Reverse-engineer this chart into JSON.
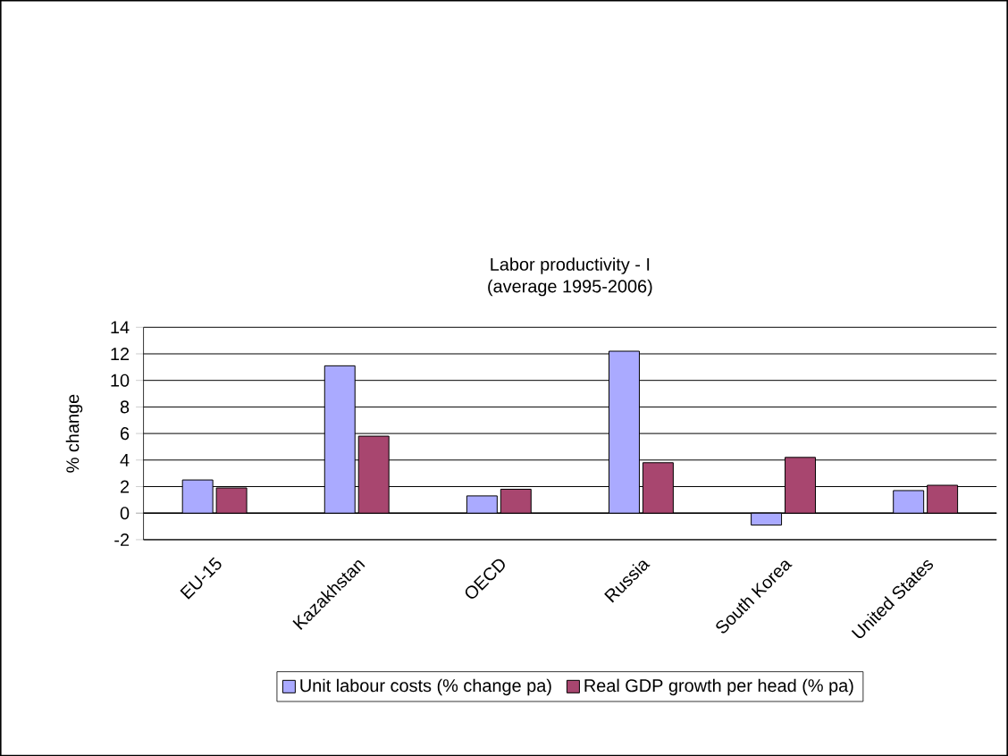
{
  "chart_data": {
    "type": "bar",
    "title": "Labor productivity - I",
    "subtitle": "(average 1995-2006)",
    "ylabel": "% change",
    "categories": [
      "EU-15",
      "Kazakhstan",
      "OECD",
      "Russia",
      "South Korea",
      "United States"
    ],
    "series": [
      {
        "name": "Unit labour costs (% change pa)",
        "color": "#aaaaff",
        "values": [
          2.5,
          11.1,
          1.3,
          12.2,
          -0.9,
          1.7
        ]
      },
      {
        "name": "Real GDP growth per head (% pa)",
        "color": "#a8466f",
        "values": [
          1.9,
          5.8,
          1.8,
          3.8,
          4.2,
          2.1
        ]
      }
    ],
    "ylim": [
      -2,
      14
    ],
    "yticks": [
      -2,
      0,
      2,
      4,
      6,
      8,
      10,
      12,
      14
    ],
    "grid": "y",
    "legend": "bottom"
  }
}
